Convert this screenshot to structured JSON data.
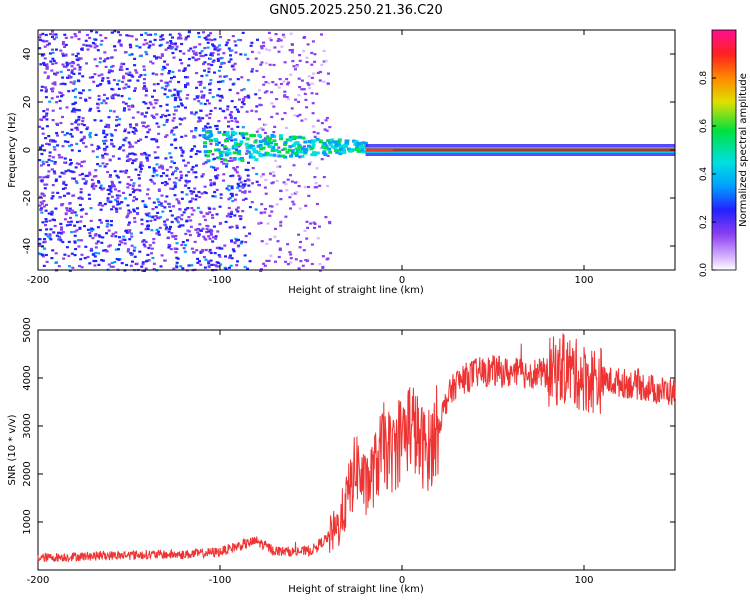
{
  "title": "GN05.2025.250.21.36.C20",
  "chart_data": [
    {
      "type": "heatmap",
      "xlabel": "Height of straight line (km)",
      "ylabel": "Frequency (Hz)",
      "xlim": [
        -200,
        150
      ],
      "ylim": [
        -50,
        50
      ],
      "xticks": [
        -200,
        -100,
        0,
        100
      ],
      "yticks": [
        -40,
        -20,
        0,
        20,
        40
      ],
      "colorbar": {
        "label": "Normalized spectral amplitude",
        "range": [
          0,
          1
        ],
        "ticks": [
          "0.0",
          "0.2",
          "0.4",
          "0.6",
          "0.8"
        ]
      },
      "features": {
        "noise_region_km": [
          -200,
          -40
        ],
        "signal_line_hz": 0,
        "strong_signal_start_km": -20
      }
    },
    {
      "type": "line",
      "xlabel": "Height of straight line (km)",
      "ylabel": "SNR (10 * v/v)",
      "xlim": [
        -200,
        150
      ],
      "ylim": [
        0,
        5000
      ],
      "xticks": [
        -200,
        -100,
        0,
        100
      ],
      "yticks": [
        1000,
        2000,
        3000,
        4000,
        5000
      ],
      "series": [
        {
          "name": "SNR",
          "color": "#ee3333",
          "x": [
            -200,
            -180,
            -160,
            -140,
            -120,
            -100,
            -90,
            -80,
            -70,
            -60,
            -50,
            -45,
            -40,
            -35,
            -30,
            -25,
            -20,
            -15,
            -10,
            -5,
            0,
            5,
            10,
            15,
            20,
            25,
            30,
            40,
            50,
            60,
            70,
            80,
            90,
            100,
            110,
            120,
            130,
            140,
            150
          ],
          "values": [
            250,
            280,
            300,
            320,
            320,
            380,
            500,
            600,
            400,
            380,
            400,
            550,
            700,
            900,
            1500,
            2200,
            1700,
            2100,
            2600,
            2400,
            2800,
            3100,
            2600,
            2500,
            3000,
            3600,
            3900,
            4100,
            4150,
            4100,
            4100,
            4100,
            4200,
            4000,
            3950,
            3900,
            3850,
            3750,
            3700
          ]
        }
      ]
    }
  ]
}
